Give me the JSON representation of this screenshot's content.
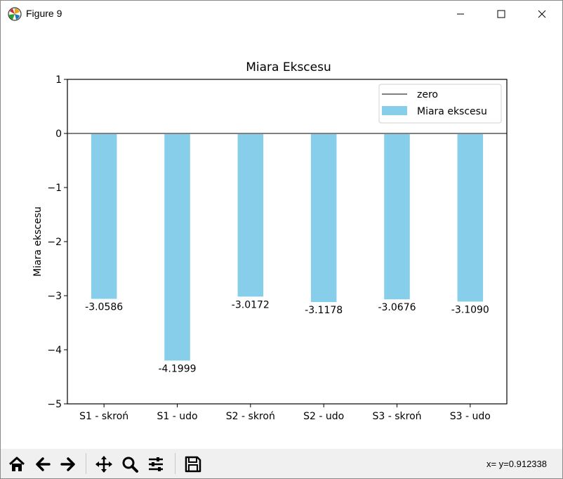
{
  "window": {
    "title": "Figure 9"
  },
  "toolbar": {
    "buttons": [
      {
        "name": "home-icon"
      },
      {
        "name": "back-arrow-icon"
      },
      {
        "name": "forward-arrow-icon"
      },
      {
        "name": "pan-icon"
      },
      {
        "name": "zoom-icon"
      },
      {
        "name": "configure-subplots-icon"
      },
      {
        "name": "save-icon"
      }
    ],
    "coords": "x= y=0.912338"
  },
  "colors": {
    "bar": "#87ceeb",
    "zero_line": "#808080",
    "axes": "#000000"
  },
  "chart_data": {
    "type": "bar",
    "title": "Miara Ekscesu",
    "xlabel": "",
    "ylabel": "Miara ekscesu",
    "categories": [
      "S1 - skroń",
      "S1 - udo",
      "S2 - skroń",
      "S2 - udo",
      "S3 - skroń",
      "S3 - udo"
    ],
    "series": [
      {
        "name": "Miara ekscesu",
        "values": [
          -3.0586,
          -4.1999,
          -3.0172,
          -3.1178,
          -3.0676,
          -3.109
        ]
      }
    ],
    "value_labels": [
      "-3.0586",
      "-4.1999",
      "-3.0172",
      "-3.1178",
      "-3.0676",
      "-3.1090"
    ],
    "reference_line": {
      "name": "zero",
      "y": 0
    },
    "ylim": [
      -5,
      1
    ],
    "yticks": [
      1,
      0,
      -1,
      -2,
      -3,
      -4,
      -5
    ],
    "ytick_labels": [
      "1",
      "0",
      "−1",
      "−2",
      "−3",
      "−4",
      "−5"
    ],
    "grid": false,
    "legend": {
      "position": "top-right",
      "entries": [
        "zero",
        "Miara ekscesu"
      ]
    }
  }
}
